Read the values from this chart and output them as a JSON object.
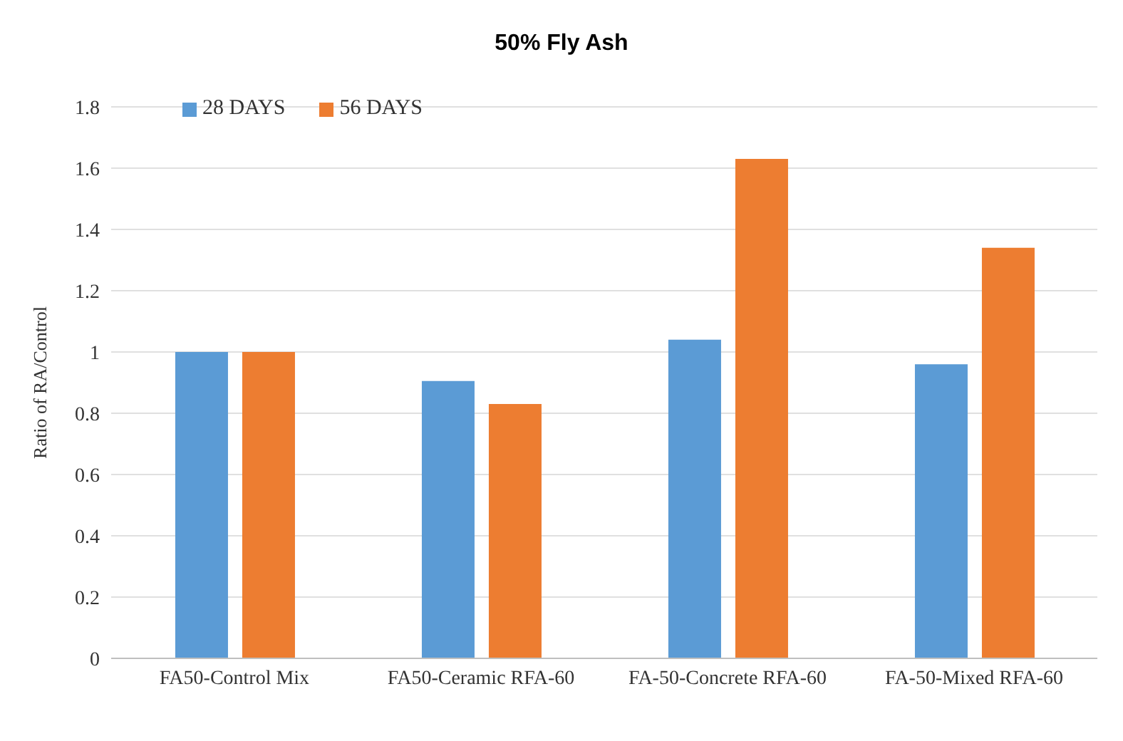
{
  "chart_data": {
    "type": "bar",
    "title": "50% Fly Ash",
    "ylabel": "Ratio of RA/Control",
    "categories": [
      "FA50-Control Mix",
      "FA50-Ceramic RFA-60",
      "FA-50-Concrete RFA-60",
      "FA-50-Mixed RFA-60"
    ],
    "series": [
      {
        "name": "28 DAYS",
        "color": "#5b9bd5",
        "values": [
          1,
          0.905,
          1.04,
          0.96
        ]
      },
      {
        "name": "56 DAYS",
        "color": "#ed7d31",
        "values": [
          1,
          0.83,
          1.63,
          1.34
        ]
      }
    ],
    "ylim": [
      0,
      1.8
    ],
    "yticks": [
      0,
      0.2,
      0.4,
      0.6,
      0.8,
      1,
      1.2,
      1.4,
      1.6,
      1.8
    ],
    "grid": "y",
    "legend": "top left"
  }
}
